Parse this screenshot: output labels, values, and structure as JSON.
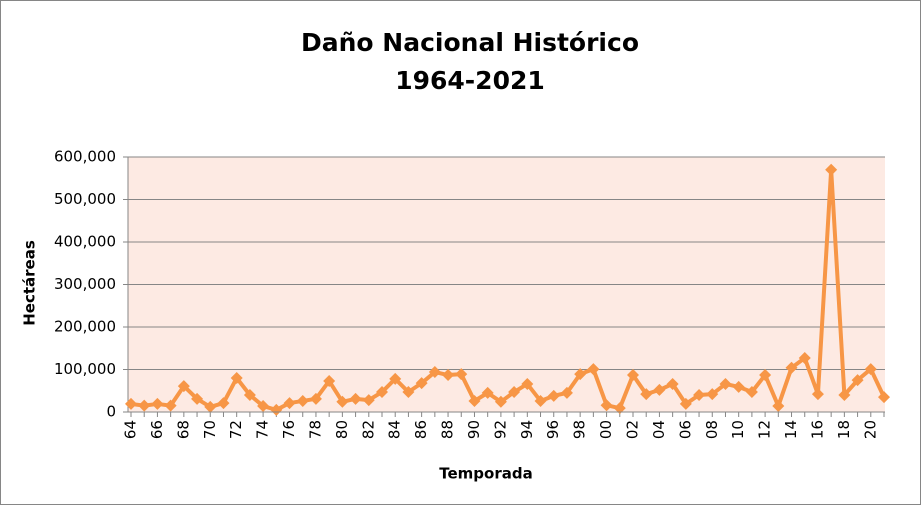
{
  "chart_data": {
    "type": "line",
    "title": "Daño Nacional Histórico",
    "subtitle": "1964-2021",
    "x_label": "Temporada",
    "y_label": "Hectáreas",
    "categories": [
      "64",
      null,
      "66",
      null,
      "68",
      null,
      "70",
      null,
      "72",
      null,
      "74",
      null,
      "76",
      null,
      "78",
      null,
      "80",
      null,
      "82",
      null,
      "84",
      null,
      "86",
      null,
      "88",
      null,
      "90",
      null,
      "92",
      null,
      "94",
      null,
      "96",
      null,
      "98",
      null,
      "00",
      null,
      "02",
      null,
      "04",
      null,
      "06",
      null,
      "08",
      null,
      "10",
      null,
      "12",
      null,
      "14",
      null,
      "16",
      null,
      "18",
      null,
      "20",
      null
    ],
    "values": [
      19000,
      15000,
      19000,
      15000,
      61000,
      31000,
      12000,
      21000,
      80000,
      40000,
      14000,
      5000,
      21000,
      26000,
      31000,
      73000,
      24000,
      31000,
      28000,
      47000,
      78000,
      47000,
      68000,
      94000,
      87000,
      89000,
      26000,
      45000,
      24000,
      47000,
      66000,
      26000,
      38000,
      45000,
      89000,
      101000,
      16000,
      9000,
      87000,
      42000,
      52000,
      66000,
      19000,
      40000,
      42000,
      66000,
      59000,
      47000,
      87000,
      14000,
      104000,
      127000,
      42000,
      570000,
      40000,
      75000,
      101000,
      35000
    ],
    "color": "#f79646",
    "ylim": [
      0,
      600000
    ],
    "yticks": [
      0,
      {
        "value": 100000,
        "label": "100,000"
      },
      {
        "value": 200000,
        "label": "200,000"
      },
      {
        "value": 300000,
        "label": "300,000"
      },
      {
        "value": 400000,
        "label": "400,000"
      },
      {
        "value": 500000,
        "label": "500,000"
      },
      {
        "value": 600000,
        "label": "600,000"
      }
    ],
    "grid": true,
    "plot_background": "#fdeae3"
  }
}
